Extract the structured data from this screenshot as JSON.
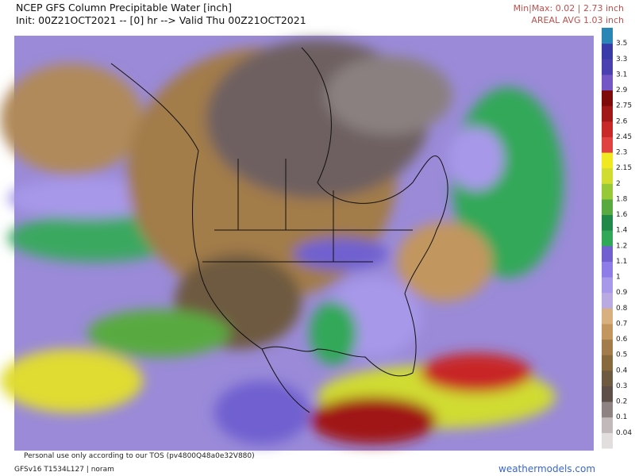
{
  "header": {
    "title": "NCEP GFS Column Precipitable Water [inch]",
    "subtitle": "Init: 00Z21OCT2021 -- [0] hr --> Valid Thu 00Z21OCT2021",
    "minmax": "Min|Max: 0.02 | 2.73 inch",
    "areal_avg": "AREAL AVG 1.03 inch"
  },
  "colorbar": {
    "labels": [
      "0.04",
      "0.1",
      "0.2",
      "0.3",
      "0.4",
      "0.5",
      "0.6",
      "0.7",
      "0.8",
      "0.9",
      "1",
      "1.1",
      "1.2",
      "1.4",
      "1.6",
      "1.8",
      "2",
      "2.15",
      "2.3",
      "2.45",
      "2.6",
      "2.75",
      "2.9",
      "3.1",
      "3.3",
      "3.5"
    ],
    "colors": [
      "#e2dede",
      "#c2baba",
      "#8e8282",
      "#5e5048",
      "#6e5a40",
      "#88693e",
      "#a27c4a",
      "#c2965e",
      "#d8b080",
      "#baaae2",
      "#a898ea",
      "#8e7ce8",
      "#7060d0",
      "#30a858",
      "#208848",
      "#58aa40",
      "#96c838",
      "#d0dc30",
      "#f0e820",
      "#e04242",
      "#c82828",
      "#a01818",
      "#7e0a0a",
      "#7456c4",
      "#4a40b0",
      "#3a3aa8",
      "#2a86b4"
    ]
  },
  "footer": {
    "tos": "Personal use only according to our TOS (pv4800Q48a0e32V880)",
    "model": "GFSv16 T1534L127 | noram",
    "site": "weathermodels.com"
  }
}
